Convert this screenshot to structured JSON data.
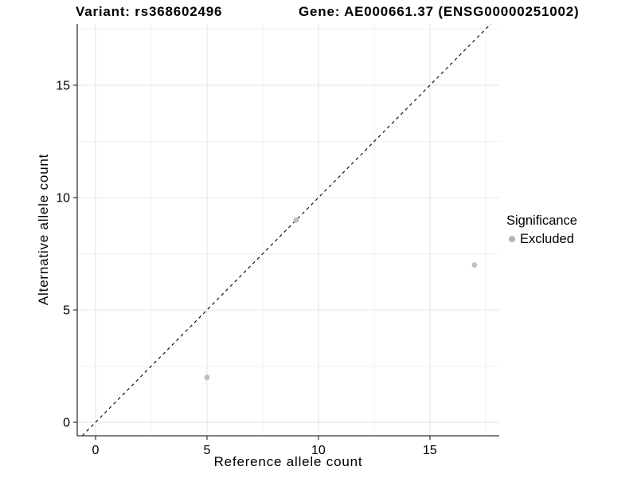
{
  "chart_data": {
    "type": "scatter",
    "titles": {
      "left": "Variant: rs368602496",
      "right": "Gene: AE000661.37 (ENSG00000251002)"
    },
    "xlabel": "Reference allele count",
    "ylabel": "Alternative allele count",
    "xlim": [
      -0.82,
      18.11
    ],
    "ylim": [
      -0.6,
      17.73
    ],
    "xticks": [
      0,
      5,
      10,
      15
    ],
    "yticks": [
      0,
      5,
      10,
      15
    ],
    "x_minor_ticks": [
      2.5,
      7.5,
      12.5,
      17.5
    ],
    "y_minor_ticks": [
      2.5,
      7.5,
      12.5,
      17.5
    ],
    "grid": true,
    "identity_line": {
      "style": "dashed",
      "slope": 1,
      "intercept": 0,
      "color": "#000000"
    },
    "series": [
      {
        "name": "Excluded",
        "color": "#bfbfbf",
        "points": [
          {
            "x": 5,
            "y": 2
          },
          {
            "x": 9,
            "y": 9
          },
          {
            "x": 17,
            "y": 7
          }
        ]
      }
    ],
    "legend": {
      "title": "Significance",
      "position": "right",
      "items": [
        {
          "label": "Excluded",
          "color": "#b3b3b3"
        }
      ]
    },
    "colors": {
      "background": "#ffffff",
      "grid_major": "#e4e4e4",
      "grid_minor": "#f0f0f0",
      "axis": "#333333",
      "tick_text": "#000000",
      "point": "#bfbfbf"
    }
  }
}
